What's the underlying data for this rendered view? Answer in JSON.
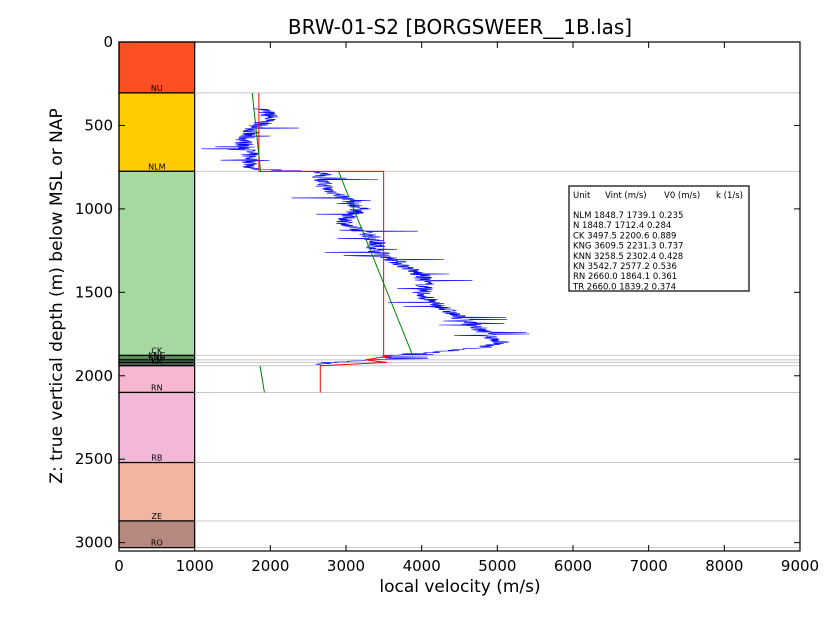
{
  "chart_data": {
    "type": "line",
    "title": "BRW-01-S2 [BORGSWEER__1B.las]",
    "xlabel": "local velocity (m/s)",
    "ylabel": "Z: true vertical depth (m) below MSL or NAP",
    "xlim": [
      0,
      9000
    ],
    "ylim": [
      3050,
      0
    ],
    "y_inverted": true,
    "xticks": [
      "0",
      "1000",
      "2000",
      "3000",
      "4000",
      "5000",
      "6000",
      "7000",
      "8000",
      "9000"
    ],
    "yticks": [
      "0",
      "500",
      "1000",
      "1500",
      "2000",
      "2500",
      "3000"
    ],
    "grid": "horizontal lines at unit boundaries",
    "units": [
      {
        "name": "NU",
        "top": 0,
        "base": 305,
        "color": "#ff4f24"
      },
      {
        "name": "NLM",
        "top": 305,
        "base": 775,
        "color": "#ffcc00"
      },
      {
        "name": "CK",
        "top": 775,
        "base": 1878,
        "color": "#a6d8a2"
      },
      {
        "name": "KNG",
        "top": 1878,
        "base": 1905,
        "color": "#5a8a5a"
      },
      {
        "name": "KNN",
        "top": 1905,
        "base": 1920,
        "color": "#5a8a5a"
      },
      {
        "name": "KN",
        "top": 1920,
        "base": 1940,
        "color": "#4f5f4f"
      },
      {
        "name": "RN",
        "top": 1940,
        "base": 2100,
        "color": "#f7b6d2"
      },
      {
        "name": "RB",
        "top": 2100,
        "base": 2520,
        "color": "#f3b8d8"
      },
      {
        "name": "ZE",
        "top": 2520,
        "base": 2870,
        "color": "#f2b5a0"
      },
      {
        "name": "RO",
        "top": 2870,
        "base": 3030,
        "color": "#b58880"
      }
    ],
    "series": [
      {
        "color": "#0000ff",
        "style": "noisy log",
        "depth": [
          400,
          450,
          500,
          550,
          600,
          650,
          700,
          760,
          780,
          820,
          880,
          950,
          1000,
          1050,
          1100,
          1150,
          1200,
          1250,
          1300,
          1350,
          1400,
          1450,
          1500,
          1550,
          1600,
          1650,
          1700,
          1750,
          1800,
          1830,
          1860,
          1880,
          1900,
          1920,
          1935
        ],
        "velocity": [
          1900,
          2000,
          1850,
          1700,
          1650,
          1700,
          1750,
          1750,
          2700,
          2650,
          2750,
          3050,
          3200,
          3000,
          3000,
          3300,
          3400,
          3400,
          3600,
          3800,
          4000,
          4050,
          4000,
          4100,
          4300,
          4500,
          4700,
          4850,
          5050,
          4800,
          4200,
          3500,
          3600,
          2800,
          2600
        ]
      },
      {
        "color": "#ff0000",
        "style": "interval velocity",
        "depth": [
          305,
          775,
          775,
          1878,
          1878,
          1905,
          1920,
          1940,
          2100
        ],
        "velocity": [
          1848.7,
          1848.7,
          3497.5,
          3497.5,
          3609.5,
          3258.5,
          3542.7,
          2660.0,
          2660.0
        ]
      },
      {
        "color": "#008000",
        "style": "linear V0 + kZ",
        "segments": [
          {
            "unit": "NLM",
            "V0": 1739.1,
            "k": 0.235
          },
          {
            "unit": "CK",
            "V0": 2200.6,
            "k": 0.889
          },
          {
            "unit": "RN",
            "V0": 1864.1,
            "k": 0.361
          }
        ]
      }
    ],
    "annotation_table": {
      "header": [
        "Unit",
        "Vint (m/s)",
        "V0 (m/s)",
        "k (1/s)"
      ],
      "rows": [
        [
          "NLM",
          "1848.7",
          "1739.1",
          "0.235"
        ],
        [
          "N",
          "1848.7",
          "1712.4",
          "0.284"
        ],
        [
          "CK",
          "3497.5",
          "2200.6",
          "0.889"
        ],
        [
          "KNG",
          "3609.5",
          "2231.3",
          "0.737"
        ],
        [
          "KNN",
          "3258.5",
          "2302.4",
          "0.428"
        ],
        [
          "KN",
          "3542.7",
          "2577.2",
          "0.536"
        ],
        [
          "RN",
          "2660.0",
          "1864.1",
          "0.361"
        ],
        [
          "TR",
          "2660.0",
          "1839.2",
          "0.374"
        ]
      ]
    }
  }
}
